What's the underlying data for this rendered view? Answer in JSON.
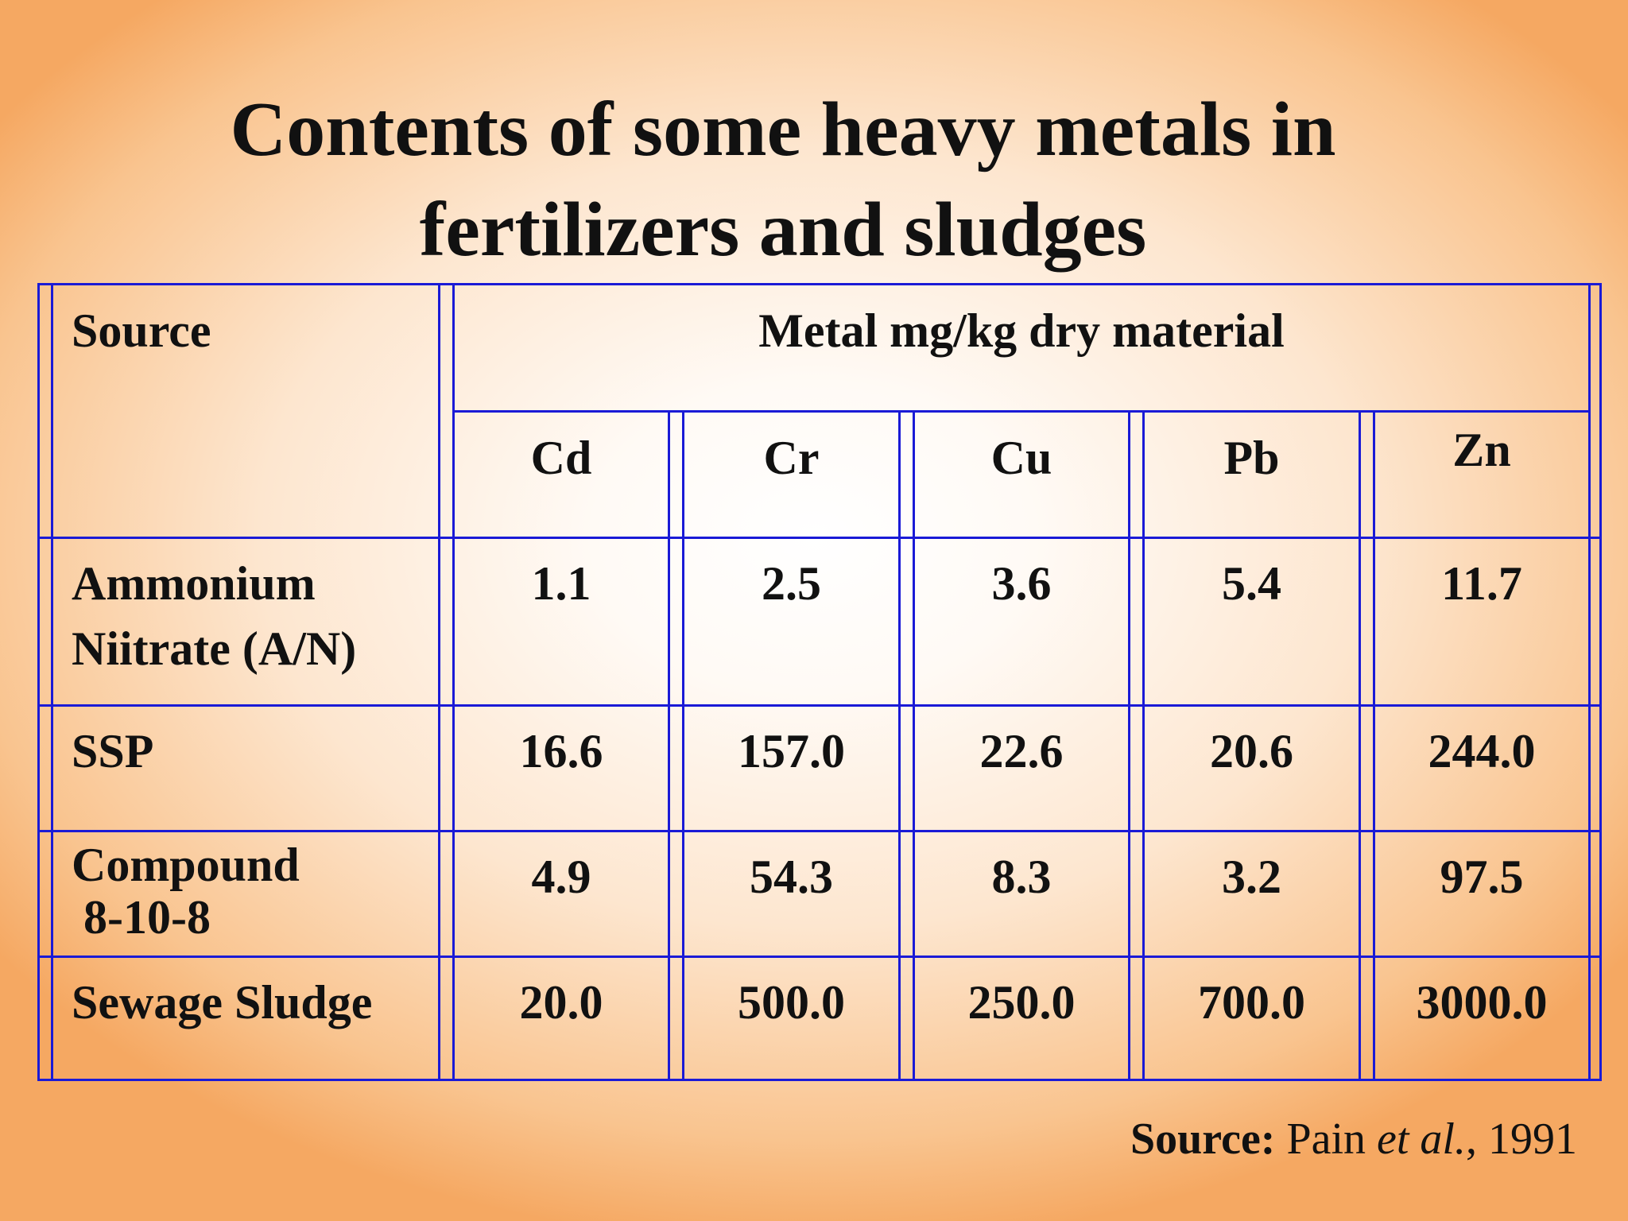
{
  "slide": {
    "title_line1": "Contents of some heavy metals in",
    "title_line2": "fertilizers and sludges"
  },
  "table": {
    "source_header": "Source",
    "metal_header": "Metal mg/kg dry material",
    "columns": [
      "Cd",
      "Cr",
      "Cu",
      "Pb",
      "Zn"
    ],
    "rows": [
      {
        "source_line1": "Ammonium",
        "source_line2": "Niitrate (A/N)",
        "values": [
          "1.1",
          "2.5",
          "3.6",
          "5.4",
          "11.7"
        ]
      },
      {
        "source_line1": "SSP",
        "source_line2": "",
        "values": [
          "16.6",
          "157.0",
          "22.6",
          "20.6",
          "244.0"
        ]
      },
      {
        "source_line1": "Compound",
        "source_line2": " 8-10-8",
        "values": [
          "4.9",
          "54.3",
          "8.3",
          "3.2",
          "97.5"
        ]
      },
      {
        "source_line1": "Sewage Sludge",
        "source_line2": "",
        "values": [
          "20.0",
          "500.0",
          "250.0",
          "700.0",
          "3000.0"
        ]
      }
    ]
  },
  "citation": {
    "label": "Source:",
    "author": " Pain ",
    "etal": "et al.",
    "year": ", 1991"
  },
  "colors": {
    "grid": "#1a1ad6"
  }
}
